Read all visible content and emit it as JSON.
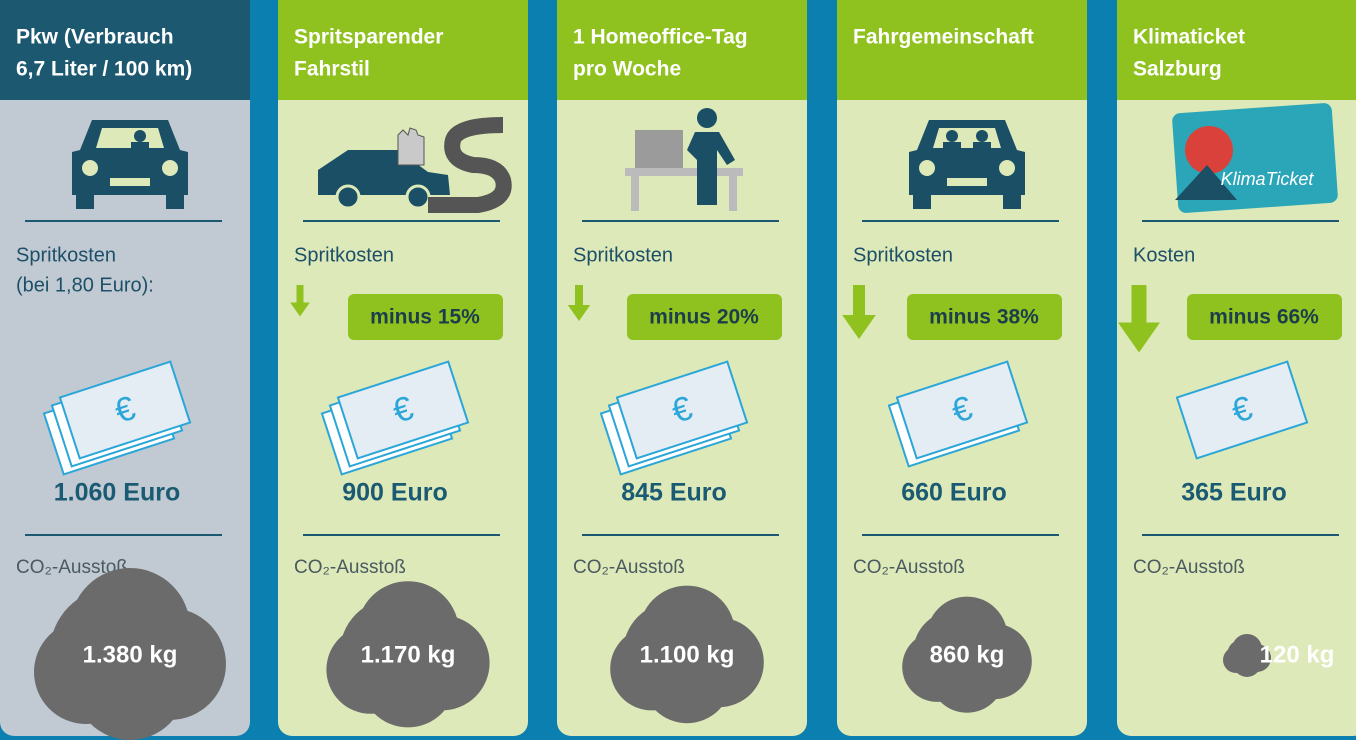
{
  "columns": [
    {
      "title": [
        "Pkw (Verbrauch",
        "6,7 Liter / 100 km)"
      ],
      "cost_label": [
        "Spritkosten",
        "(bei 1,80 Euro):"
      ],
      "cost": "1.060 Euro",
      "co2_label": "CO₂-Ausstoß",
      "co2": "1.380 kg"
    },
    {
      "title": [
        "Spritsparender",
        "Fahrstil"
      ],
      "cost_label": [
        "Spritkosten"
      ],
      "reduction": "minus 15%",
      "cost": "900 Euro",
      "co2_label": "CO₂-Ausstoß",
      "co2": "1.170 kg"
    },
    {
      "title": [
        "1 Homeoffice-Tag",
        "pro Woche"
      ],
      "cost_label": [
        "Spritkosten"
      ],
      "reduction": "minus 20%",
      "cost": "845 Euro",
      "co2_label": "CO₂-Ausstoß",
      "co2": "1.100 kg"
    },
    {
      "title": [
        "Fahrgemeinschaft"
      ],
      "cost_label": [
        "Spritkosten"
      ],
      "reduction": "minus 38%",
      "cost": "660 Euro",
      "co2_label": "CO₂-Ausstoß",
      "co2": "860 kg"
    },
    {
      "title": [
        "Klimaticket",
        "Salzburg"
      ],
      "cost_label": [
        "Kosten"
      ],
      "reduction": "minus 66%",
      "cost": "365 Euro",
      "co2_label": "CO₂-Ausstoß",
      "co2": "120 kg"
    }
  ]
}
